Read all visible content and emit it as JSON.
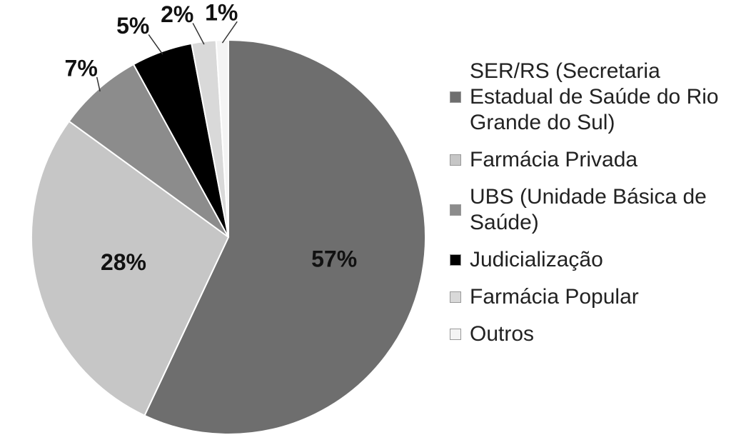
{
  "chart_data": {
    "type": "pie",
    "categories": [
      "SER/RS (Secretaria Estadual de Saúde do Rio Grande do Sul)",
      "Farmácia Privada",
      "UBS (Unidade Básica de Saúde)",
      "Judicialização",
      "Farmácia Popular",
      "Outros"
    ],
    "values": [
      57,
      28,
      7,
      5,
      2,
      1
    ],
    "value_labels": [
      "57%",
      "28%",
      "7%",
      "5%",
      "2%",
      "1%"
    ],
    "colors": [
      "#6e6e6e",
      "#c6c6c6",
      "#8c8c8c",
      "#000000",
      "#d9d9d9",
      "#f4f4f4"
    ]
  }
}
